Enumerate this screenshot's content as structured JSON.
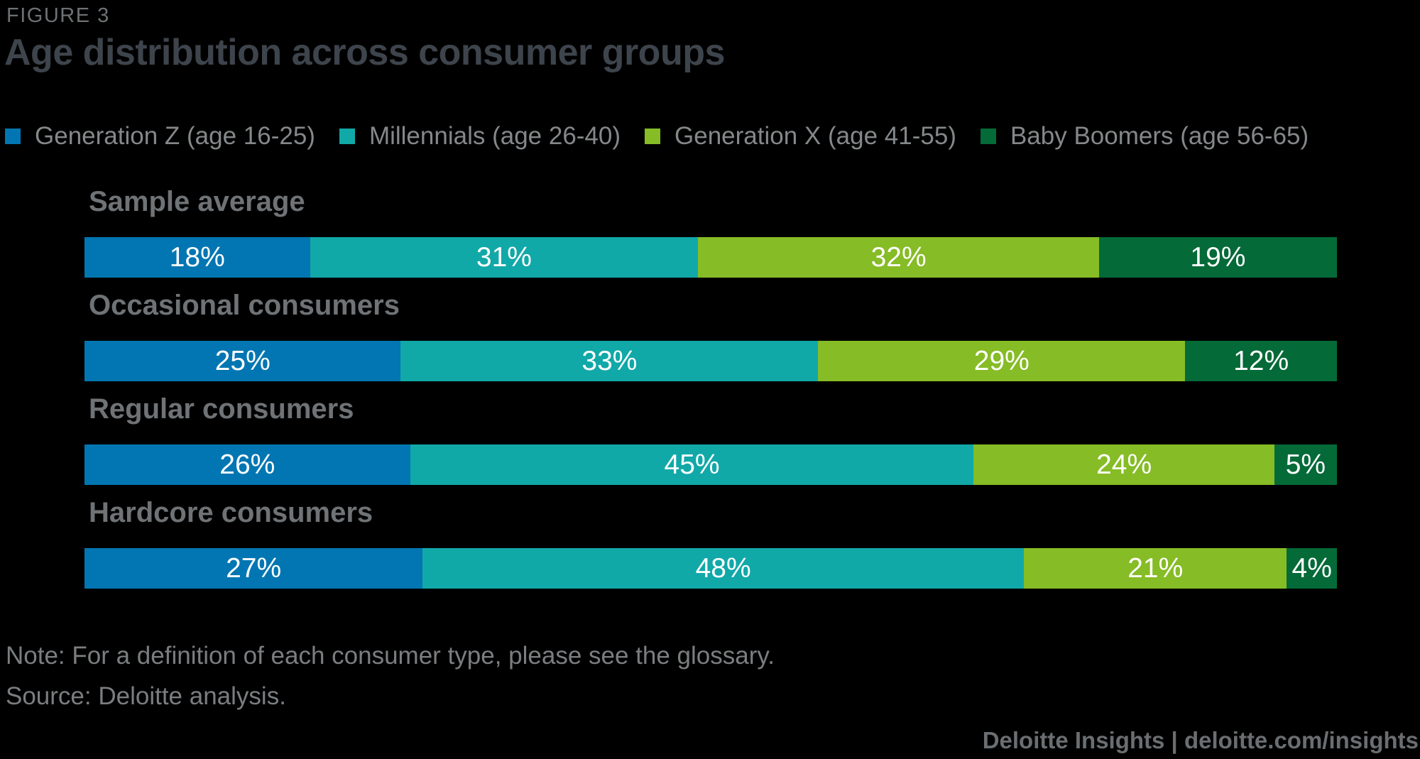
{
  "figure_label": "FIGURE 3",
  "title": "Age distribution across consumer groups",
  "chart_data": {
    "type": "bar",
    "subtype": "horizontal-stacked",
    "unit": "%",
    "value_labels": true,
    "legend_position": "top",
    "categories": [
      "Sample average",
      "Occasional consumers",
      "Regular consumers",
      "Hardcore consumers"
    ],
    "series": [
      {
        "name": "Generation Z (age 16-25)",
        "color": "#0276B2",
        "values": [
          18,
          25,
          26,
          27
        ]
      },
      {
        "name": "Millennials (age 26-40)",
        "color": "#11A8A8",
        "values": [
          31,
          33,
          45,
          48
        ]
      },
      {
        "name": "Generation X (age 41-55)",
        "color": "#86BC25",
        "values": [
          32,
          29,
          24,
          21
        ]
      },
      {
        "name": "Baby Boomers (age 56-65)",
        "color": "#046A38",
        "values": [
          19,
          12,
          5,
          4
        ]
      }
    ]
  },
  "note": "Note: For a definition of each consumer type, please see the glossary.",
  "source": "Source: Deloitte analysis.",
  "footer": {
    "brand": "Deloitte Insights",
    "separator": " | ",
    "link": "deloitte.com/insights"
  },
  "colors": {
    "background": "#000000",
    "title_text": "#3E444C",
    "figure_label_text": "#6E7173",
    "legend_text": "#85888A",
    "row_label_text": "#6F7376",
    "value_text": "#FFFFFF",
    "note_text": "#7B7E80",
    "footer_text": "#6A6E71"
  }
}
